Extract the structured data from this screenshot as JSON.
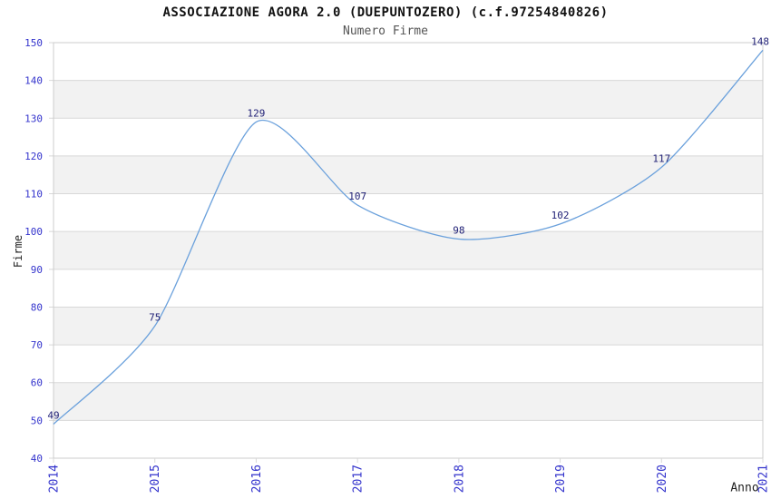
{
  "chart_data": {
    "type": "line",
    "title": "ASSOCIAZIONE AGORA 2.0 (DUEPUNTOZERO) (c.f.97254840826)",
    "subtitle": "Numero Firme",
    "xlabel": "Anno",
    "ylabel": "Firme",
    "categories": [
      "2014",
      "2015",
      "2016",
      "2017",
      "2018",
      "2019",
      "2020",
      "2021"
    ],
    "values": [
      49,
      75,
      129,
      107,
      98,
      102,
      117,
      148
    ],
    "point_labels": [
      "49",
      "75",
      "129",
      "107",
      "98",
      "102",
      "117",
      "148"
    ],
    "ylim": [
      40,
      150
    ],
    "ytick_step": 10,
    "yticks": [
      40,
      50,
      60,
      70,
      80,
      90,
      100,
      110,
      120,
      130,
      140,
      150
    ],
    "grid": "horizontal gridlines with alternating gray bands",
    "legend": "none",
    "colors": {
      "line": "#6ba1dc",
      "tick_labels": "#3333cc",
      "point_labels": "#222277",
      "band": "#f2f2f2",
      "gridline": "#d8d8d8",
      "border": "#cccccc",
      "title": "#111111",
      "subtitle": "#555555",
      "axis_titles": "#222222",
      "background": "#ffffff"
    }
  }
}
